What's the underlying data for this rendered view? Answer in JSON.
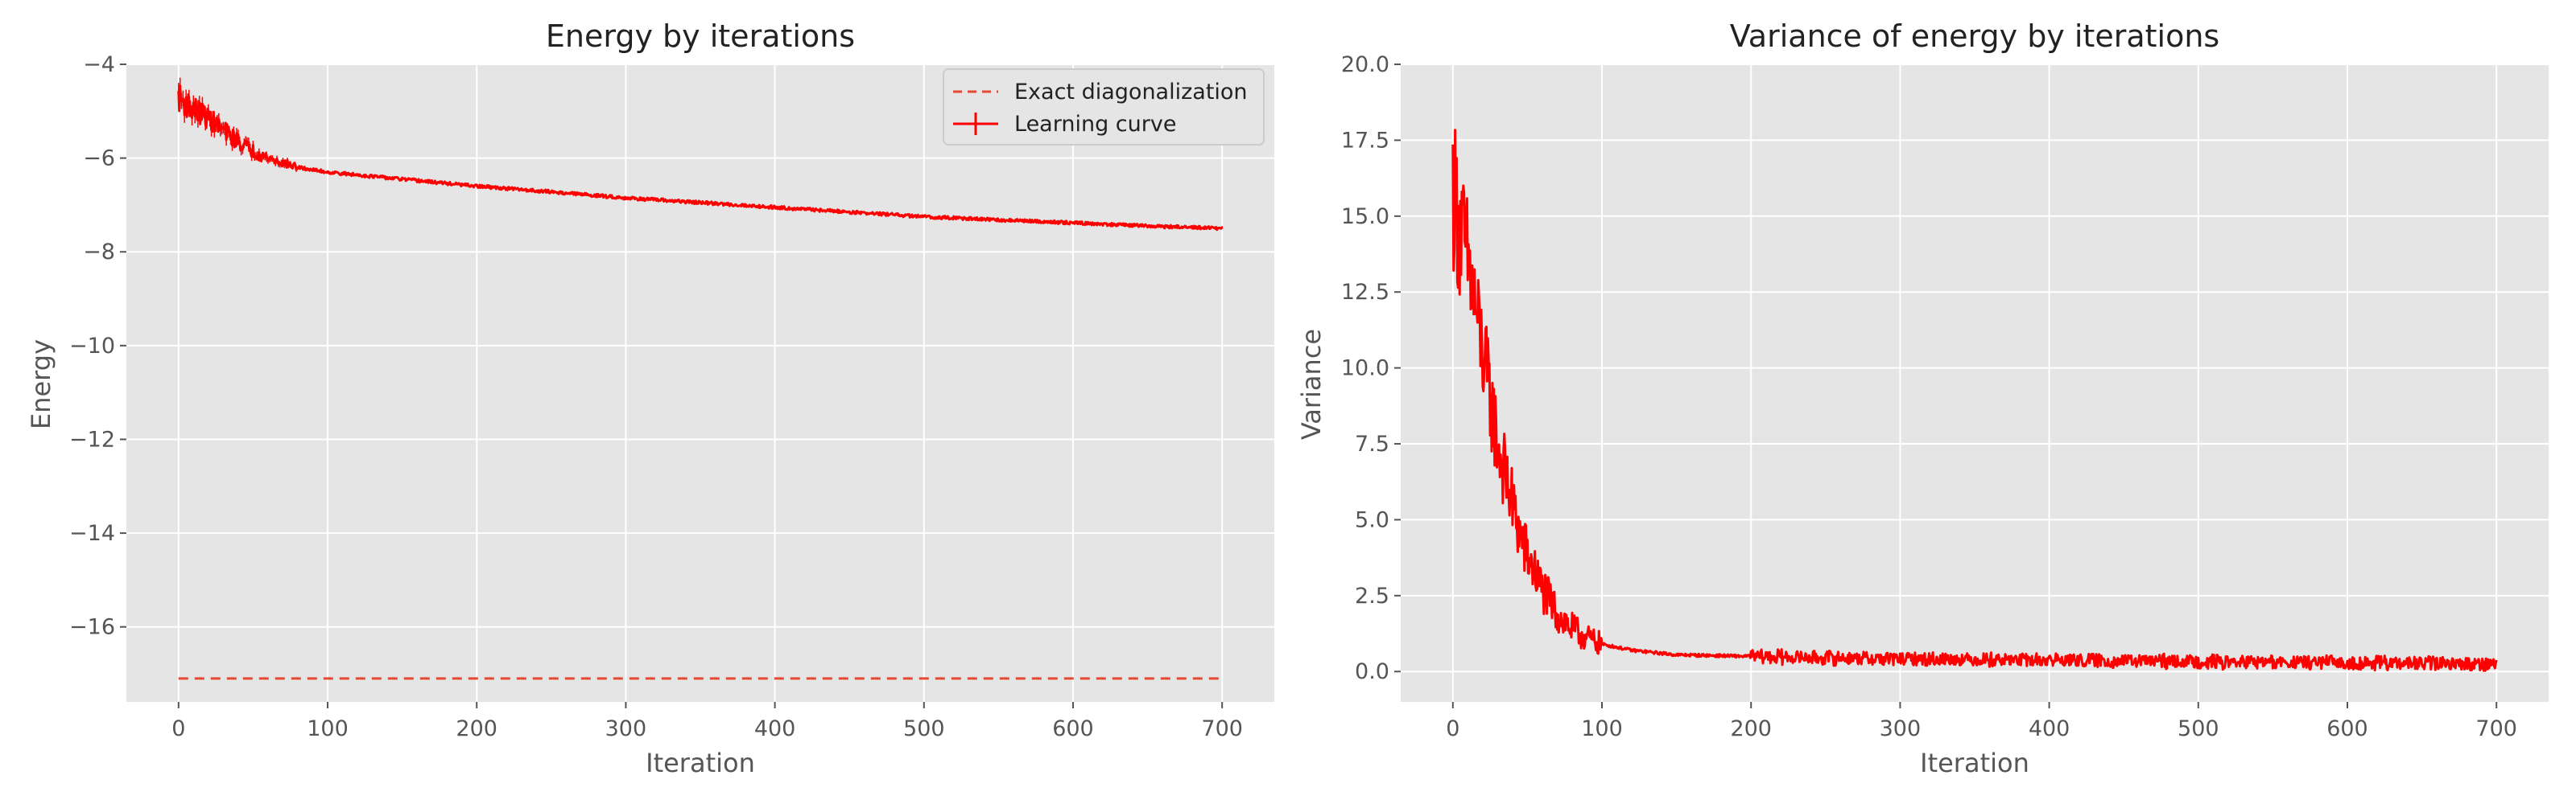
{
  "chart_data": [
    {
      "type": "line",
      "title": "Energy by iterations",
      "xlabel": "Iteration",
      "ylabel": "Energy",
      "xlim": [
        -35,
        735
      ],
      "ylim": [
        -17.6,
        -4
      ],
      "xticks": [
        0,
        100,
        200,
        300,
        400,
        500,
        600,
        700
      ],
      "yticks": [
        -16,
        -14,
        -12,
        -10,
        -8,
        -6,
        -4
      ],
      "grid": true,
      "legend": "top-right",
      "series": [
        {
          "name": "Exact diagonalization",
          "style": "dashed",
          "color": "#e24a33",
          "x": [
            0,
            700
          ],
          "y": [
            -17.1,
            -17.1
          ]
        },
        {
          "name": "Learning curve",
          "style": "solid-errorbar",
          "color": "#ff0000",
          "x": [
            0,
            5,
            10,
            20,
            30,
            40,
            50,
            60,
            70,
            80,
            100,
            150,
            200,
            250,
            300,
            350,
            400,
            450,
            500,
            550,
            600,
            650,
            700
          ],
          "y": [
            -4.7,
            -4.85,
            -4.95,
            -5.15,
            -5.4,
            -5.65,
            -5.85,
            -6.0,
            -6.1,
            -6.2,
            -6.3,
            -6.45,
            -6.6,
            -6.72,
            -6.85,
            -6.95,
            -7.05,
            -7.15,
            -7.25,
            -7.32,
            -7.38,
            -7.45,
            -7.5
          ]
        }
      ]
    },
    {
      "type": "line",
      "title": "Variance of energy by iterations",
      "xlabel": "Iteration",
      "ylabel": "Variance",
      "xlim": [
        -35,
        735
      ],
      "ylim": [
        -1,
        20
      ],
      "xticks": [
        0,
        100,
        200,
        300,
        400,
        500,
        600,
        700
      ],
      "yticks": [
        0.0,
        2.5,
        5.0,
        7.5,
        10.0,
        12.5,
        15.0,
        17.5,
        20.0
      ],
      "ytick_labels": [
        "0.0",
        "2.5",
        "5.0",
        "7.5",
        "10.0",
        "12.5",
        "15.0",
        "17.5",
        "20.0"
      ],
      "grid": true,
      "series": [
        {
          "color": "#ff0000",
          "x": [
            0,
            5,
            10,
            15,
            20,
            25,
            30,
            35,
            40,
            45,
            50,
            60,
            70,
            80,
            90,
            100,
            120,
            150,
            200,
            250,
            300,
            350,
            400,
            450,
            500,
            550,
            600,
            650,
            700
          ],
          "y": [
            16,
            14.5,
            13.5,
            12,
            10.5,
            9,
            7.5,
            6.5,
            5.5,
            4.5,
            3.8,
            2.7,
            1.9,
            1.4,
            1.1,
            0.9,
            0.7,
            0.55,
            0.5,
            0.45,
            0.42,
            0.4,
            0.38,
            0.35,
            0.33,
            0.3,
            0.28,
            0.27,
            0.25
          ]
        }
      ]
    }
  ]
}
